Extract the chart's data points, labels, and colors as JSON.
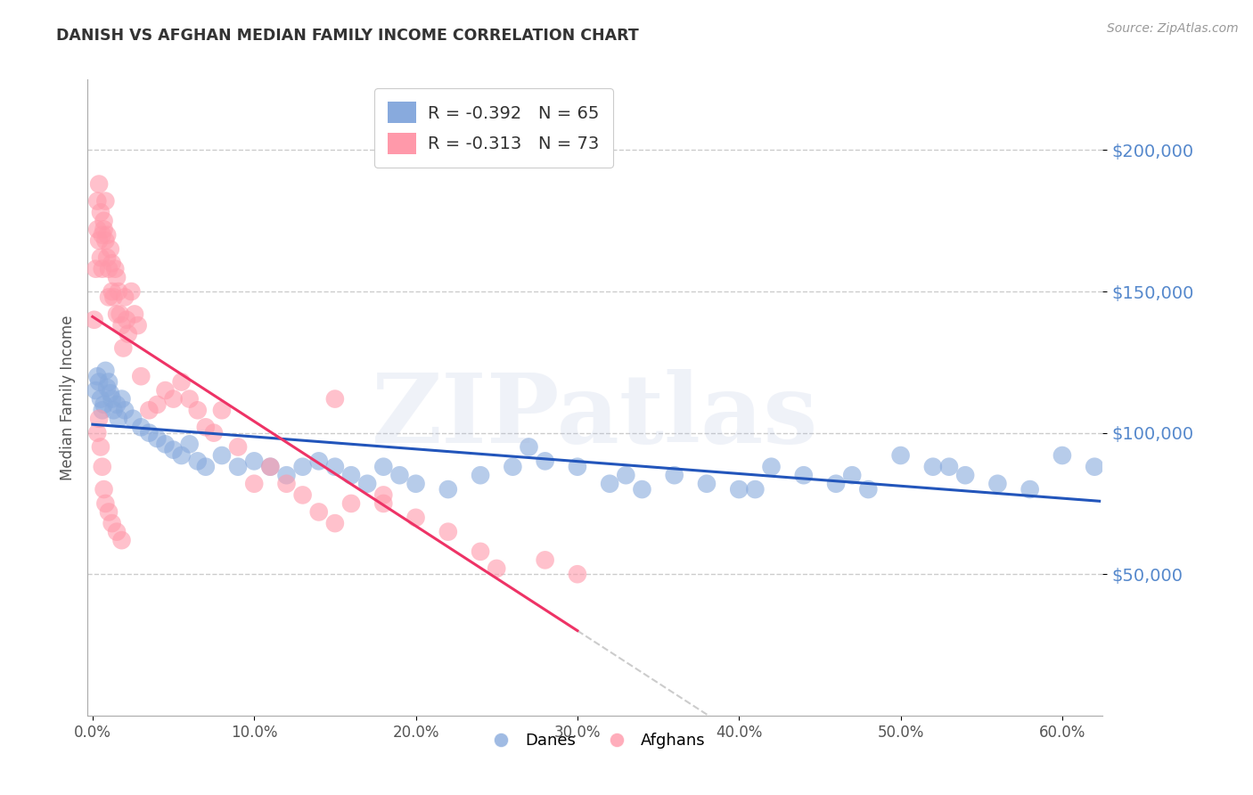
{
  "title": "DANISH VS AFGHAN MEDIAN FAMILY INCOME CORRELATION CHART",
  "source": "Source: ZipAtlas.com",
  "ylabel": "Median Family Income",
  "xlim": [
    -0.003,
    0.625
  ],
  "ylim": [
    0,
    225000
  ],
  "yticks": [
    50000,
    100000,
    150000,
    200000
  ],
  "ytick_labels": [
    "$50,000",
    "$100,000",
    "$150,000",
    "$200,000"
  ],
  "xtick_positions": [
    0.0,
    0.1,
    0.2,
    0.3,
    0.4,
    0.5,
    0.6
  ],
  "xtick_labels": [
    "0.0%",
    "10.0%",
    "20.0%",
    "30.0%",
    "40.0%",
    "50.0%",
    "60.0%"
  ],
  "danes_color": "#88aadd",
  "afghans_color": "#ff99aa",
  "danes_line_color": "#2255bb",
  "afghans_line_color": "#ee3366",
  "dashed_ext_color": "#cccccc",
  "legend_danes_R": "-0.392",
  "legend_danes_N": "65",
  "legend_afghans_R": "-0.313",
  "legend_afghans_N": "73",
  "watermark": "ZIPatlas",
  "bg_color": "#ffffff",
  "title_color": "#333333",
  "source_color": "#999999",
  "ylabel_color": "#555555",
  "ytick_color": "#5588cc",
  "xtick_color": "#555555",
  "grid_color": "#cccccc",
  "danes_x": [
    0.002,
    0.003,
    0.004,
    0.005,
    0.006,
    0.007,
    0.008,
    0.009,
    0.01,
    0.011,
    0.012,
    0.013,
    0.015,
    0.016,
    0.018,
    0.02,
    0.025,
    0.03,
    0.035,
    0.04,
    0.045,
    0.05,
    0.055,
    0.06,
    0.065,
    0.07,
    0.08,
    0.09,
    0.1,
    0.11,
    0.12,
    0.13,
    0.14,
    0.15,
    0.16,
    0.17,
    0.18,
    0.19,
    0.2,
    0.22,
    0.24,
    0.26,
    0.28,
    0.3,
    0.32,
    0.34,
    0.36,
    0.38,
    0.4,
    0.42,
    0.44,
    0.46,
    0.48,
    0.5,
    0.52,
    0.54,
    0.56,
    0.58,
    0.6,
    0.62,
    0.27,
    0.33,
    0.41,
    0.47,
    0.53
  ],
  "danes_y": [
    115000,
    120000,
    118000,
    112000,
    108000,
    110000,
    122000,
    116000,
    118000,
    114000,
    112000,
    108000,
    110000,
    105000,
    112000,
    108000,
    105000,
    102000,
    100000,
    98000,
    96000,
    94000,
    92000,
    96000,
    90000,
    88000,
    92000,
    88000,
    90000,
    88000,
    85000,
    88000,
    90000,
    88000,
    85000,
    82000,
    88000,
    85000,
    82000,
    80000,
    85000,
    88000,
    90000,
    88000,
    82000,
    80000,
    85000,
    82000,
    80000,
    88000,
    85000,
    82000,
    80000,
    92000,
    88000,
    85000,
    82000,
    80000,
    92000,
    88000,
    95000,
    85000,
    80000,
    85000,
    88000
  ],
  "afghans_x": [
    0.001,
    0.002,
    0.003,
    0.004,
    0.005,
    0.006,
    0.007,
    0.008,
    0.009,
    0.01,
    0.011,
    0.012,
    0.013,
    0.014,
    0.015,
    0.016,
    0.017,
    0.018,
    0.019,
    0.02,
    0.021,
    0.022,
    0.024,
    0.026,
    0.028,
    0.03,
    0.035,
    0.04,
    0.045,
    0.05,
    0.055,
    0.06,
    0.065,
    0.07,
    0.075,
    0.08,
    0.09,
    0.1,
    0.11,
    0.12,
    0.13,
    0.14,
    0.15,
    0.16,
    0.18,
    0.2,
    0.22,
    0.24,
    0.28,
    0.3,
    0.003,
    0.004,
    0.005,
    0.006,
    0.007,
    0.008,
    0.009,
    0.01,
    0.012,
    0.015,
    0.003,
    0.004,
    0.005,
    0.006,
    0.007,
    0.008,
    0.01,
    0.012,
    0.015,
    0.018,
    0.15,
    0.18,
    0.25
  ],
  "afghans_y": [
    140000,
    158000,
    172000,
    168000,
    162000,
    158000,
    172000,
    168000,
    162000,
    148000,
    165000,
    160000,
    148000,
    158000,
    155000,
    150000,
    142000,
    138000,
    130000,
    148000,
    140000,
    135000,
    150000,
    142000,
    138000,
    120000,
    108000,
    110000,
    115000,
    112000,
    118000,
    112000,
    108000,
    102000,
    100000,
    108000,
    95000,
    82000,
    88000,
    82000,
    78000,
    72000,
    68000,
    75000,
    78000,
    70000,
    65000,
    58000,
    55000,
    50000,
    182000,
    188000,
    178000,
    170000,
    175000,
    182000,
    170000,
    158000,
    150000,
    142000,
    100000,
    105000,
    95000,
    88000,
    80000,
    75000,
    72000,
    68000,
    65000,
    62000,
    112000,
    75000,
    52000
  ]
}
